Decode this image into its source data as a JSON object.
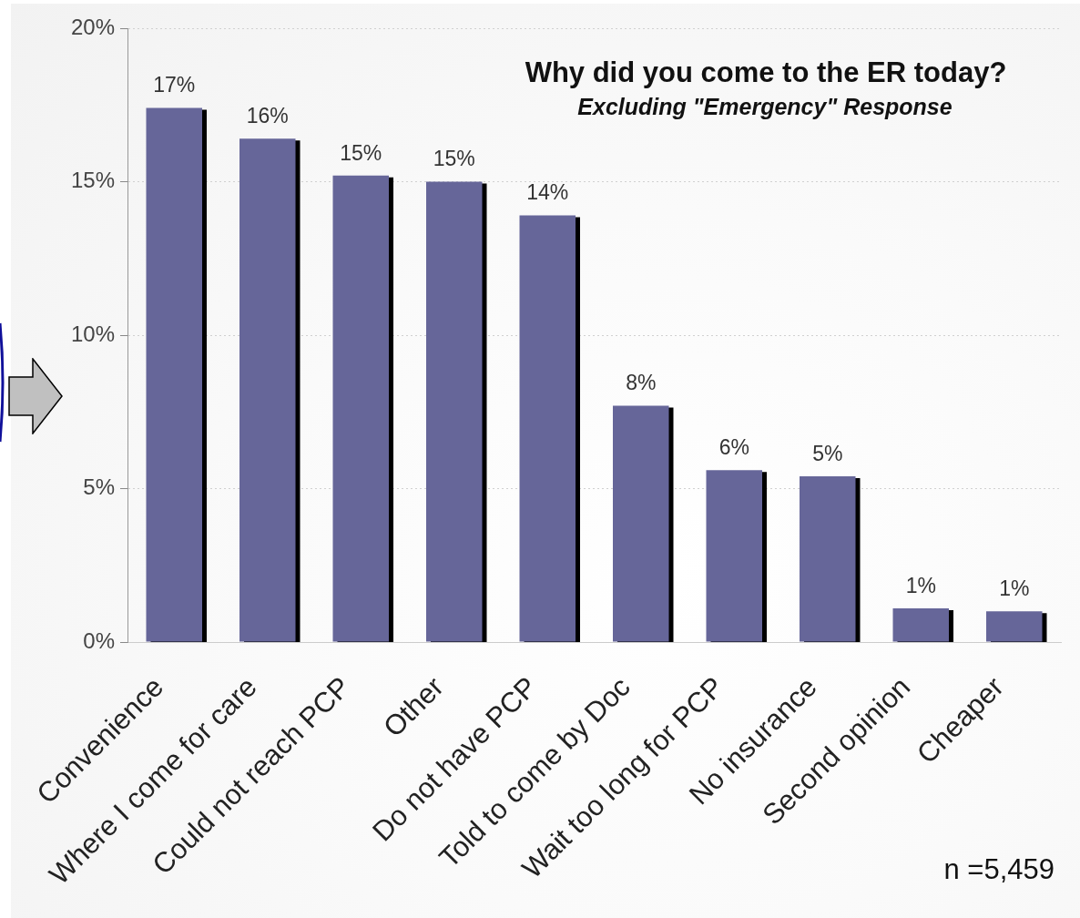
{
  "chart_data": {
    "type": "bar",
    "title": "Why did you come to the ER today?",
    "subtitle": "Excluding \"Emergency\" Response",
    "categories": [
      "Convenience",
      "Where I come for care",
      "Could not reach PCP",
      "Other",
      "Do not have PCP",
      "Told to come by Doc",
      "Wait too long for PCP",
      "No insurance",
      "Second opinion",
      "Cheaper"
    ],
    "values": [
      17.4,
      16.4,
      15.2,
      15.0,
      13.9,
      7.7,
      5.6,
      5.4,
      1.1,
      1.0
    ],
    "color": "#666699",
    "value_labels": [
      "17%",
      "16%",
      "15%",
      "15%",
      "14%",
      "8%",
      "6%",
      "5%",
      "1%",
      "1%"
    ],
    "ylim": [
      0,
      20
    ],
    "yticks": [
      {
        "value": 0,
        "label": "0%"
      },
      {
        "value": 5,
        "label": "5%"
      },
      {
        "value": 10,
        "label": "10%"
      },
      {
        "value": 15,
        "label": "15%"
      },
      {
        "value": 20,
        "label": "20%"
      }
    ],
    "grid": "y",
    "annotations": [
      "n =5,459"
    ]
  }
}
